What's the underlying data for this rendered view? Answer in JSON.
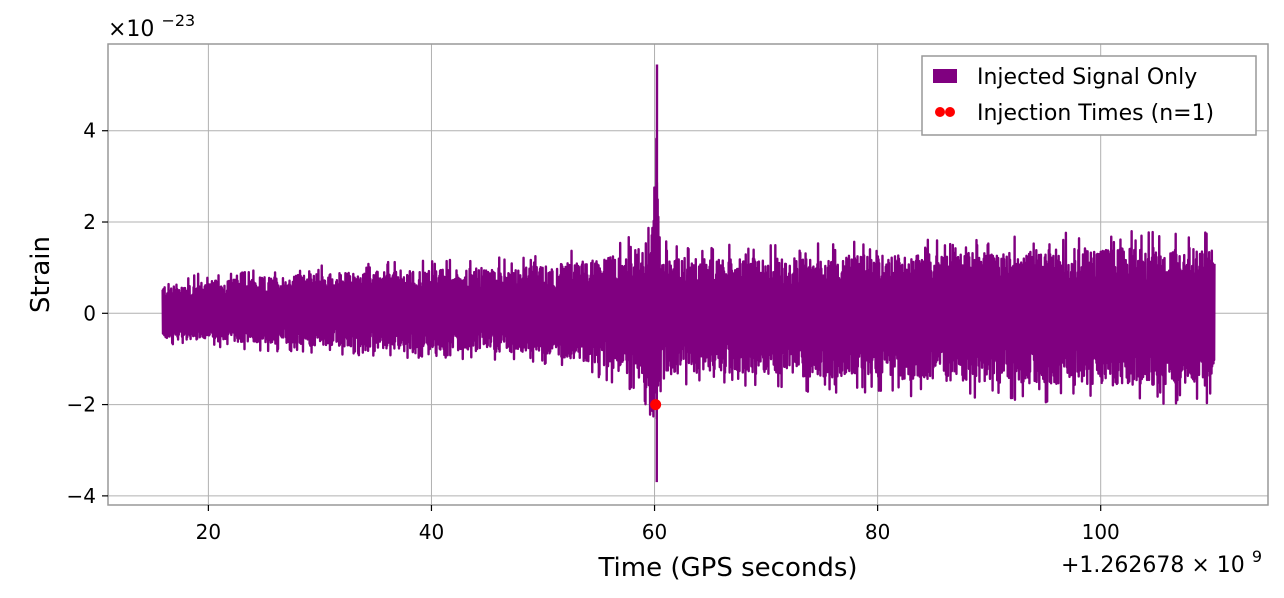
{
  "chart_data": {
    "type": "line",
    "scale_multiplier_label": "×10",
    "scale_multiplier_exponent": "−23",
    "x_offset_label": "+1.262678 × 10",
    "x_offset_exponent": "9",
    "xlabel": "Time (GPS seconds)",
    "ylabel": "Strain",
    "xlim": [
      11,
      115
    ],
    "ylim": [
      -4.2,
      5.9
    ],
    "x_ticks": [
      20,
      40,
      60,
      80,
      100
    ],
    "x_tick_labels": [
      "20",
      "40",
      "60",
      "80",
      "100"
    ],
    "y_ticks": [
      -4,
      -2,
      0,
      2,
      4
    ],
    "y_tick_labels": [
      "−4",
      "−2",
      "0",
      "2",
      "4"
    ],
    "grid": true,
    "legend_position": "top-right",
    "series": [
      {
        "name": "Injected Signal Only",
        "color": "#800080",
        "kind": "line",
        "x_range": [
          15.9,
          110.2
        ],
        "envelope": {
          "x": [
            15.9,
            30,
            40,
            50,
            55,
            58,
            59.5,
            60.0,
            60.2,
            60.4,
            61,
            65,
            70,
            80,
            90,
            100,
            110.2
          ],
          "upper": [
            0.8,
            1.1,
            1.2,
            1.3,
            1.5,
            1.7,
            2.0,
            3.0,
            5.45,
            2.2,
            1.6,
            1.5,
            1.5,
            1.6,
            1.7,
            1.8,
            1.8
          ],
          "lower": [
            -0.7,
            -0.9,
            -1.0,
            -1.1,
            -1.4,
            -1.7,
            -2.2,
            -3.1,
            -3.7,
            -2.4,
            -1.7,
            -1.6,
            -1.7,
            -1.8,
            -1.9,
            -2.0,
            -2.0
          ]
        }
      },
      {
        "name": "Injection Times (n=1)",
        "color": "#ff0000",
        "kind": "scatter",
        "points": [
          {
            "x": 60.1,
            "y": -2.0
          }
        ]
      }
    ]
  }
}
